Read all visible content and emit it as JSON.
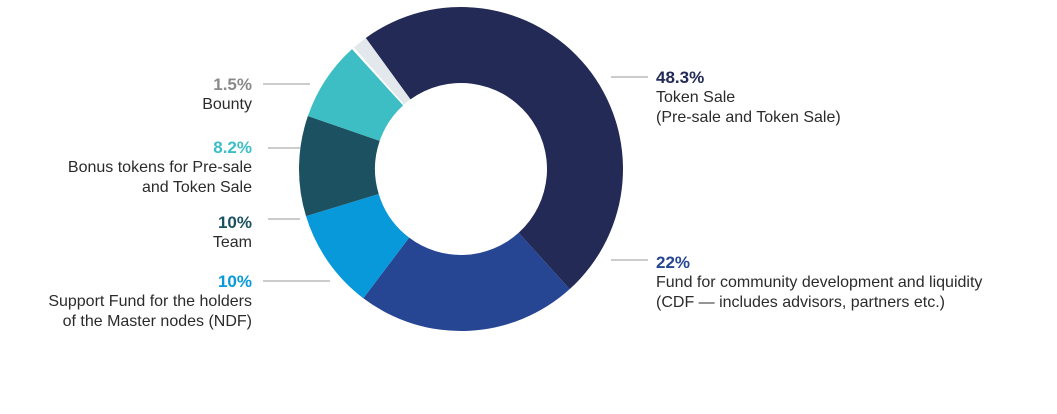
{
  "chart_data": {
    "type": "pie",
    "variant": "donut",
    "slices": [
      {
        "value": 48.3,
        "label": "48.3%",
        "lines": [
          "Token Sale",
          "(Pre-sale and Token Sale)"
        ],
        "color": "#222a55"
      },
      {
        "value": 22,
        "label": "22%",
        "lines": [
          "Fund for community development and liquidity",
          "(CDF — includes advisors, partners etc.)"
        ],
        "color": "#264593"
      },
      {
        "value": 10,
        "label": "10%",
        "lines": [
          "Support Fund for the holders",
          "of the Master nodes (NDF)"
        ],
        "color": "#0899db"
      },
      {
        "value": 10,
        "label": "10%",
        "lines": [
          "Team"
        ],
        "color": "#1b5161"
      },
      {
        "value": 8.2,
        "label": "8.2%",
        "lines": [
          "Bonus tokens for Pre-sale",
          "and Token Sale"
        ],
        "color": "#3dbdc4"
      },
      {
        "value": 1.5,
        "label": "1.5%",
        "lines": [
          "Bounty"
        ],
        "color": "#e3e8ec"
      }
    ],
    "pct_colors": [
      "#222a55",
      "#264593",
      "#0899db",
      "#1b5161",
      "#3dbdc4",
      "#8a8a8a"
    ]
  }
}
